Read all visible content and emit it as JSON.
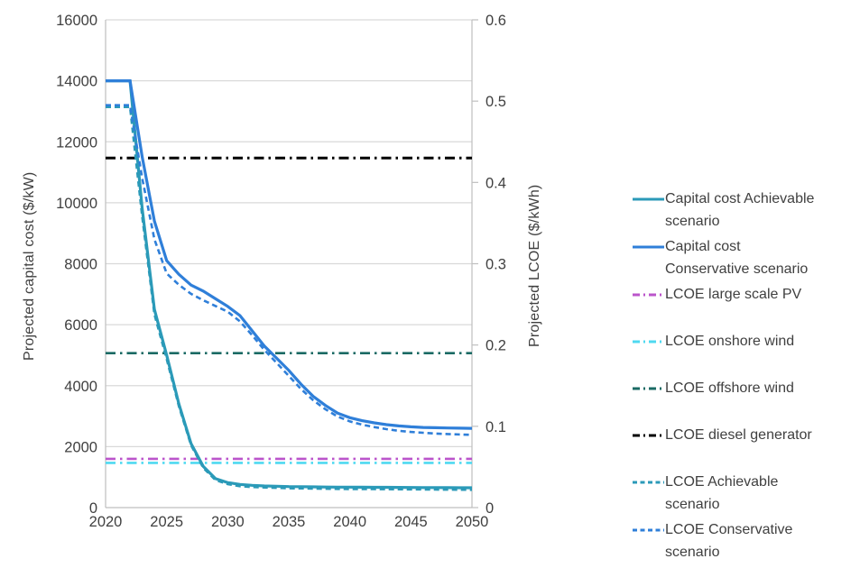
{
  "chart_data": {
    "type": "line",
    "title": "",
    "grid": true,
    "legend_position": "right",
    "x_axis": {
      "label": "",
      "min": 2020,
      "max": 2050,
      "ticks": [
        2020,
        2025,
        2030,
        2035,
        2040,
        2045,
        2050
      ]
    },
    "left_axis": {
      "label": "Projected capital cost ($/kW)",
      "min": 0,
      "max": 16000,
      "ticks": [
        0,
        2000,
        4000,
        6000,
        8000,
        10000,
        12000,
        14000,
        16000
      ]
    },
    "right_axis": {
      "label": "Projected LCOE ($/kWh)",
      "min": 0,
      "max": 0.6,
      "ticks": [
        0,
        0.1,
        0.2,
        0.3,
        0.4,
        0.5,
        0.6
      ]
    },
    "years": [
      2020,
      2021,
      2022,
      2023,
      2024,
      2025,
      2026,
      2027,
      2028,
      2029,
      2030,
      2031,
      2032,
      2033,
      2034,
      2035,
      2036,
      2037,
      2038,
      2039,
      2040,
      2041,
      2042,
      2043,
      2044,
      2045,
      2046,
      2047,
      2048,
      2049,
      2050
    ],
    "series": [
      {
        "name": "Capital cost Achievable scenario",
        "label_lines": [
          "Capital cost Achievable",
          "scenario"
        ],
        "axis": "left",
        "style": "solid",
        "color": "#2B9AB8",
        "values": [
          14000,
          14000,
          14000,
          9800,
          6500,
          5000,
          3400,
          2100,
          1350,
          950,
          820,
          760,
          730,
          710,
          700,
          690,
          685,
          680,
          675,
          672,
          670,
          668,
          666,
          664,
          662,
          660,
          658,
          656,
          654,
          652,
          650
        ]
      },
      {
        "name": "Capital cost Conservative scenario",
        "label_lines": [
          "Capital cost",
          "Conservative scenario"
        ],
        "axis": "left",
        "style": "solid",
        "color": "#2F7FD9",
        "values": [
          14000,
          14000,
          14000,
          11500,
          9400,
          8100,
          7650,
          7300,
          7100,
          6850,
          6600,
          6300,
          5800,
          5300,
          4900,
          4500,
          4050,
          3650,
          3350,
          3100,
          2950,
          2850,
          2780,
          2720,
          2680,
          2650,
          2630,
          2620,
          2610,
          2605,
          2600
        ]
      },
      {
        "name": "LCOE large scale PV",
        "label_lines": [
          "LCOE large scale PV"
        ],
        "axis": "right",
        "style": "dashdot",
        "color": "#BB55CB",
        "constant": 0.06
      },
      {
        "name": "LCOE onshore wind",
        "label_lines": [
          "LCOE onshore wind"
        ],
        "axis": "right",
        "style": "dashdot",
        "color": "#4FD9F0",
        "constant": 0.055
      },
      {
        "name": "LCOE offshore wind",
        "label_lines": [
          "LCOE offshore wind"
        ],
        "axis": "right",
        "style": "dashdot",
        "color": "#1A6A64",
        "constant": 0.19
      },
      {
        "name": "LCOE diesel generator",
        "label_lines": [
          "LCOE diesel generator"
        ],
        "axis": "right",
        "style": "dashdot",
        "color": "#000000",
        "constant": 0.43
      },
      {
        "name": "LCOE Achievable scenario",
        "label_lines": [
          "LCOE Achievable",
          "scenario"
        ],
        "axis": "right",
        "style": "dashed",
        "color": "#2B9AB8",
        "values": [
          0.495,
          0.495,
          0.495,
          0.36,
          0.24,
          0.185,
          0.127,
          0.079,
          0.051,
          0.036,
          0.031,
          0.0285,
          0.0275,
          0.027,
          0.0265,
          0.026,
          0.0258,
          0.0256,
          0.0254,
          0.0252,
          0.0251,
          0.025,
          0.0249,
          0.0248,
          0.0247,
          0.0246,
          0.0245,
          0.0244,
          0.0243,
          0.0242,
          0.0241
        ]
      },
      {
        "name": "LCOE Conservative scenario",
        "label_lines": [
          "LCOE Conservative",
          "scenario"
        ],
        "axis": "right",
        "style": "dashed",
        "color": "#2F7FD9",
        "values": [
          0.495,
          0.495,
          0.495,
          0.405,
          0.33,
          0.288,
          0.274,
          0.263,
          0.255,
          0.248,
          0.241,
          0.229,
          0.212,
          0.194,
          0.178,
          0.162,
          0.146,
          0.132,
          0.121,
          0.112,
          0.106,
          0.102,
          0.099,
          0.0965,
          0.0945,
          0.093,
          0.092,
          0.091,
          0.0905,
          0.09,
          0.0895
        ]
      }
    ],
    "colors": {
      "text": "#404040",
      "gridline": "#d9d9d9",
      "axis_line": "#bfbfbf"
    }
  }
}
